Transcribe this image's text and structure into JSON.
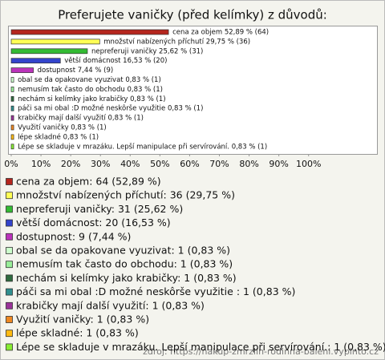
{
  "chart_data": {
    "type": "bar",
    "orientation": "horizontal",
    "title": "Preferujete vaničky (před kelímky) z důvodů:",
    "values": [
      52.89,
      29.75,
      25.62,
      16.53,
      7.44,
      0.83,
      0.83,
      0.83,
      0.83,
      0.83,
      0.83,
      0.83,
      0.83
    ],
    "counts": [
      64,
      36,
      31,
      20,
      9,
      1,
      1,
      1,
      1,
      1,
      1,
      1,
      1
    ],
    "value_labels": [
      "cena za objem 52,89 % (64)",
      "množství nabízených příchutí 29,75 % (36)",
      "nepreferuji vaničky 25,62 % (31)",
      "větší domácnost 16,53 % (20)",
      "dostupnost 7,44 % (9)",
      "obal se da opakovane vyuzivat 0,83 % (1)",
      "nemusím tak často do obchodu 0,83 % (1)",
      "nechám si kelímky jako krabičky 0,83 % (1)",
      "páči sa mi obal :D možné neskôrše využitie  0,83 % (1)",
      "krabičky mají další využití 0,83 % (1)",
      "Využití vaničky 0,83 % (1)",
      "lépe skladné 0,83 % (1)",
      "Lépe se skladuje v mrazáku. Lepší manipulace při servírování. 0,83 % (1)"
    ],
    "legend": [
      "cena za objem: 64 (52,89 %)",
      "množství nabízených příchutí: 36 (29,75 %)",
      "nepreferuji vaničky: 31 (25,62 %)",
      "větší domácnost: 20 (16,53 %)",
      "dostupnost: 9 (7,44 %)",
      "obal se da opakovane vyuzivat: 1 (0,83 %)",
      "nemusím tak často do obchodu: 1 (0,83 %)",
      "nechám si kelímky jako krabičky: 1 (0,83 %)",
      "páči sa mi obal :D možné neskôrše využitie : 1 (0,83 %)",
      "krabičky mají další využití: 1 (0,83 %)",
      "Využití vaničky: 1 (0,83 %)",
      "lépe skladné: 1 (0,83 %)",
      "Lépe se skladuje v mrazáku. Lepší manipulace při servírování.: 1 (0,83 %)"
    ],
    "colors": [
      "#b5261e",
      "#ffff55",
      "#33bb33",
      "#3344cc",
      "#bb33bb",
      "#ccffcc",
      "#99ee99",
      "#2f6b3f",
      "#2f8f8f",
      "#9a3399",
      "#ee8822",
      "#ffbb11",
      "#88ee33"
    ],
    "xlim": [
      0,
      123
    ],
    "xticks": [
      {
        "value": 0,
        "label": "0%"
      },
      {
        "value": 10,
        "label": "10%"
      },
      {
        "value": 20,
        "label": "20%"
      },
      {
        "value": 30,
        "label": "30%"
      },
      {
        "value": 40,
        "label": "40%"
      },
      {
        "value": 50,
        "label": "50%"
      },
      {
        "value": 60,
        "label": "60%"
      },
      {
        "value": 70,
        "label": "70%"
      },
      {
        "value": 80,
        "label": "80%"
      },
      {
        "value": 90,
        "label": "90%"
      },
      {
        "value": 100,
        "label": "100%"
      }
    ],
    "source": "zdroj: https://nakup-zmrzlin-rodinna-baleni.vyplnto.cz"
  }
}
